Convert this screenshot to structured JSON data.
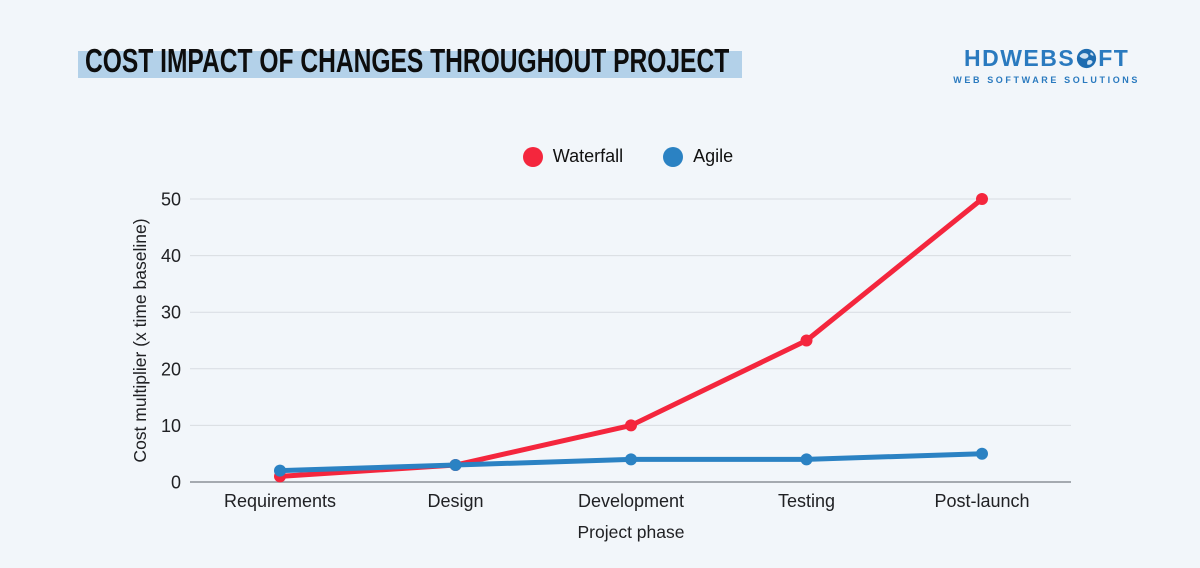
{
  "header": {
    "title": "COST IMPACT OF CHANGES THROUGHOUT PROJECT",
    "logo": {
      "brand_prefix": "HDWEBS",
      "brand_suffix": "FT",
      "brand_full": "HDWEBSOFT",
      "tagline": "WEB SOFTWARE SOLUTIONS"
    }
  },
  "chart_data": {
    "type": "line",
    "title": "COST IMPACT OF CHANGES THROUGHOUT PROJECT",
    "categories": [
      "Requirements",
      "Design",
      "Development",
      "Testing",
      "Post-launch"
    ],
    "series": [
      {
        "name": "Waterfall",
        "color": "#f4263d",
        "values": [
          1,
          3,
          10,
          25,
          50
        ]
      },
      {
        "name": "Agile",
        "color": "#2b82c3",
        "values": [
          2,
          3,
          4,
          4,
          5
        ]
      }
    ],
    "xlabel": "Project phase",
    "ylabel": "Cost multiplier (x time baseline)",
    "ylim": [
      0,
      50
    ],
    "yticks": [
      0,
      10,
      20,
      30,
      40,
      50
    ],
    "grid": true,
    "legend_position": "top-center"
  },
  "colors": {
    "background": "#f2f6fa",
    "title_highlight": "#b3d1e9",
    "grid_line": "#d8dce1",
    "axis_line": "#8b9197",
    "text": "#202124",
    "logo_blue": "#2a7abf"
  }
}
